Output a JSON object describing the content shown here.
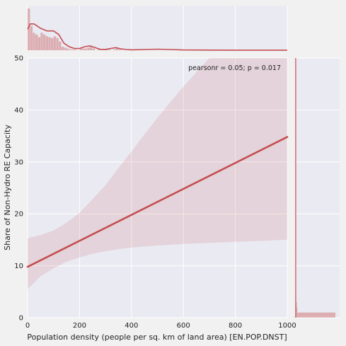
{
  "chart_data": {
    "type": "scatter",
    "variant": "jointplot-regression",
    "xlabel": "Population density (people per sq. km of land area) [EN.POP.DNST]",
    "ylabel": "Share of Non-Hydro RE Capacity",
    "xlim": [
      0,
      1000
    ],
    "ylim": [
      0,
      50
    ],
    "x_ticks": [
      "0",
      "200",
      "400",
      "600",
      "800",
      "1000"
    ],
    "y_ticks": [
      "0",
      "10",
      "20",
      "30",
      "40",
      "50"
    ],
    "annotation": "pearsonr = 0.05; p = 0.017",
    "annotation_position": "top-right",
    "grid": true,
    "regression": {
      "x": [
        0,
        1000
      ],
      "y": [
        9.8,
        34.8
      ]
    },
    "confidence_band": {
      "x": [
        0,
        50,
        100,
        150,
        200,
        250,
        300,
        350,
        400,
        450,
        500,
        600,
        700,
        800,
        900,
        1000
      ],
      "lower": [
        5.5,
        8.0,
        9.5,
        10.8,
        11.6,
        12.3,
        12.8,
        13.2,
        13.5,
        13.7,
        13.9,
        14.2,
        14.4,
        14.6,
        14.8,
        15.0
      ],
      "upper": [
        15.3,
        15.9,
        16.8,
        18.3,
        20.2,
        22.8,
        25.5,
        28.8,
        32.0,
        35.3,
        38.5,
        44.5,
        50.0,
        55.5,
        61.0,
        66.5
      ]
    },
    "marginal_x": {
      "bin_edges": [
        0,
        10,
        20,
        30,
        40,
        50,
        60,
        70,
        80,
        90,
        100,
        110,
        120,
        130,
        140,
        150,
        160,
        170,
        180,
        190,
        200,
        210,
        220,
        230,
        240,
        250,
        260,
        270,
        280,
        290,
        300,
        310,
        320,
        330,
        340,
        350,
        360
      ],
      "counts": [
        48,
        28,
        20,
        18,
        15,
        20,
        18,
        16,
        15,
        14,
        16,
        14,
        10,
        4,
        3,
        2,
        1,
        1,
        1,
        0,
        2,
        2,
        2,
        3,
        4,
        2,
        0,
        1,
        0,
        1,
        1,
        1,
        0,
        1,
        2,
        1
      ],
      "kde_x": [
        0,
        10,
        25,
        50,
        75,
        100,
        120,
        140,
        160,
        180,
        200,
        220,
        240,
        260,
        280,
        300,
        320,
        340,
        360,
        380,
        400,
        450,
        500,
        550,
        600,
        700,
        800,
        900,
        1000
      ],
      "kde_y": [
        24,
        30,
        30,
        25,
        22,
        22,
        18,
        8,
        4,
        2,
        2,
        4,
        5,
        3,
        1,
        1,
        2,
        3,
        1.5,
        0.8,
        0.5,
        0.8,
        1.2,
        0.8,
        0.3,
        0.2,
        0.1,
        0.1,
        0.1
      ]
    },
    "marginal_y": {
      "bin_edges": [
        0,
        1,
        2,
        3,
        4,
        5,
        6,
        8,
        12,
        20,
        50
      ],
      "counts": [
        70,
        4,
        3,
        2,
        2,
        1,
        1,
        0.5,
        0.3,
        0.3
      ]
    },
    "colors": {
      "line": "#c44e52",
      "band": "#c44e52",
      "hist": "#d9a3a7",
      "panel_bg": "#eaeaf2",
      "grid": "#ffffff"
    }
  }
}
